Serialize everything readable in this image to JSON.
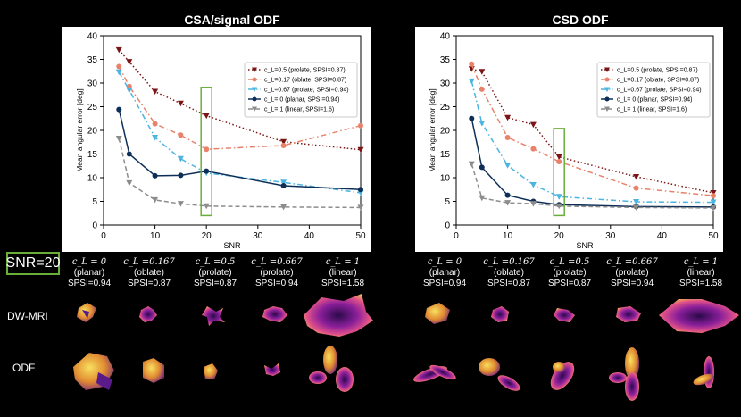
{
  "figure": {
    "snr_badge": "SNR=20",
    "row_labels": [
      "DW-MRI",
      "ODF"
    ]
  },
  "chart_data": [
    {
      "type": "line",
      "title": "CSA/signal ODF",
      "xlabel": "SNR",
      "ylabel": "Mean angular error [deg]",
      "xlim": [
        0,
        50
      ],
      "ylim": [
        0,
        40
      ],
      "xticks": [
        0,
        10,
        20,
        30,
        40,
        50
      ],
      "yticks": [
        0,
        5,
        10,
        15,
        20,
        25,
        30,
        35,
        40
      ],
      "grid": false,
      "legend_position": "right",
      "highlight_snr": 20,
      "x": [
        3,
        5,
        10,
        15,
        20,
        35,
        50
      ],
      "series": [
        {
          "name": "c_L=0.5 (prolate, SPSI=0.87)",
          "color": "#7b1414",
          "style": "dotted",
          "marker": "tri-down",
          "values": [
            37,
            34.5,
            28.2,
            25.7,
            23.1,
            17.6,
            15.9
          ]
        },
        {
          "name": "c_L=0.17 (oblate, SPSI=0.87)",
          "color": "#e8826a",
          "style": "dashdot",
          "marker": "circle",
          "values": [
            33.5,
            29.3,
            21.4,
            19,
            16,
            16.8,
            21
          ]
        },
        {
          "name": "c_L=0.67 (prolate, SPSI=0.94)",
          "color": "#4bb4e0",
          "style": "dashdot",
          "marker": "tri-down",
          "values": [
            32.3,
            28.5,
            18.5,
            14,
            11,
            9,
            6.8
          ]
        },
        {
          "name": "c_L= 0 (planar, SPSI=0.94)",
          "color": "#0d2f57",
          "style": "solid",
          "marker": "circle",
          "values": [
            24.4,
            15,
            10.4,
            10.5,
            11.4,
            8.3,
            7.5
          ]
        },
        {
          "name": "c_L= 1 (linear, SPSI=1.6)",
          "color": "#8c8c8c",
          "style": "dashed",
          "marker": "tri-down",
          "values": [
            18.3,
            8.9,
            5.3,
            4.5,
            4,
            3.8,
            3.7
          ]
        }
      ]
    },
    {
      "type": "line",
      "title": "CSD ODF",
      "xlabel": "SNR",
      "ylabel": "Mean angular error [deg]",
      "xlim": [
        0,
        50
      ],
      "ylim": [
        0,
        40
      ],
      "xticks": [
        0,
        10,
        20,
        30,
        40,
        50
      ],
      "yticks": [
        0,
        5,
        10,
        15,
        20,
        25,
        30,
        35,
        40
      ],
      "grid": false,
      "legend_position": "right",
      "highlight_snr": 20,
      "x": [
        3,
        5,
        10,
        15,
        20,
        35,
        50
      ],
      "series": [
        {
          "name": "c_L=0.5 (prolate, SPSI=0.87)",
          "color": "#7b1414",
          "style": "dotted",
          "marker": "tri-down",
          "values": [
            33,
            32.4,
            22.7,
            21.2,
            14.4,
            10.2,
            6.8
          ]
        },
        {
          "name": "c_L=0.17 (oblate, SPSI=0.87)",
          "color": "#e8826a",
          "style": "dashdot",
          "marker": "circle",
          "values": [
            34,
            28.7,
            18.5,
            16.1,
            13.4,
            7.8,
            6.2
          ]
        },
        {
          "name": "c_L=0.67 (prolate, SPSI=0.94)",
          "color": "#4bb4e0",
          "style": "dashdot",
          "marker": "tri-down",
          "values": [
            30.4,
            21.5,
            12.6,
            8.5,
            6,
            4.9,
            4.8
          ]
        },
        {
          "name": "c_L= 0 (planar, SPSI=0.94)",
          "color": "#0d2f57",
          "style": "solid",
          "marker": "circle",
          "values": [
            22.5,
            12.2,
            6.3,
            5,
            4.3,
            3.9,
            3.8
          ]
        },
        {
          "name": "c_L= 1 (linear, SPSI=1.6)",
          "color": "#8c8c8c",
          "style": "dashed",
          "marker": "tri-down",
          "values": [
            12.9,
            5.7,
            4.7,
            4.5,
            4,
            3.7,
            3.6
          ]
        }
      ]
    }
  ],
  "columns": [
    {
      "cl": "c_L = 0",
      "shape": "(planar)",
      "spsi": "SPSI=0.94"
    },
    {
      "cl": "c_L =0.167",
      "shape": "(oblate)",
      "spsi": "SPSI=0.87"
    },
    {
      "cl": "c_L =0.5",
      "shape": "(prolate)",
      "spsi": "SPSI=0.87"
    },
    {
      "cl": "c_L =0.667",
      "shape": "(prolate)",
      "spsi": "SPSI=0.94"
    },
    {
      "cl": "c_L = 1",
      "shape": "(linear)",
      "spsi": "SPSI=1.58"
    }
  ]
}
